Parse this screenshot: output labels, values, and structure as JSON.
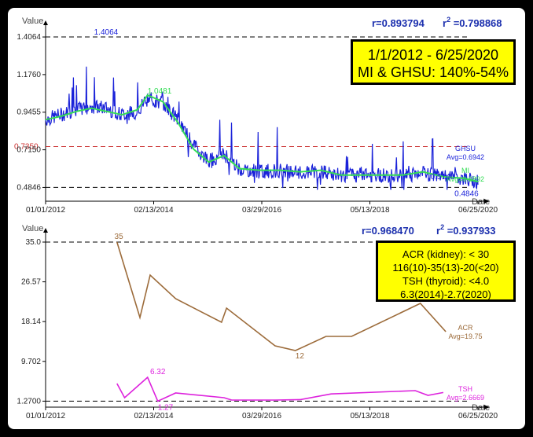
{
  "chart_data": [
    {
      "type": "line",
      "ylabel": "Value",
      "xlabel": "Date",
      "ylim": [
        0.4,
        1.45
      ],
      "xlim_year": [
        2012.0,
        2020.48
      ],
      "x_tick_labels": [
        "01/01/2012",
        "02/13/2014",
        "03/29/2016",
        "05/13/2018",
        "06/25/2020"
      ],
      "y_tick_labels": [
        "1.4064",
        "1.1760",
        "0.9455",
        "0.7150",
        "0.4846"
      ],
      "y_ticks": [
        1.4064,
        1.176,
        0.9455,
        0.715,
        0.4846
      ],
      "reference_lines": [
        {
          "value": 1.4064,
          "color": "#000000",
          "style": "dashed"
        },
        {
          "value": 0.4846,
          "color": "#000000",
          "style": "dashed"
        },
        {
          "value": 0.735,
          "color": "#cc3333",
          "style": "dashed",
          "label": "0.7350"
        }
      ],
      "stats": {
        "r": "r=0.893794",
        "r2_prefix": "r",
        "r2_exp": "2",
        "r2_value": " =0.798868"
      },
      "annotations": {
        "max_label": "1.4064",
        "min_label": "0.4846",
        "peak_label": "1.0481",
        "end_label": "0.5146"
      },
      "series": [
        {
          "name": "GHSU",
          "avg_label": "Avg=0.6942",
          "color": "#1a22d9",
          "x": [
            2012.0,
            2012.3,
            2012.6,
            2012.9,
            2013.2,
            2013.5,
            2013.8,
            2014.0,
            2014.3,
            2014.6,
            2014.9,
            2015.2,
            2015.5,
            2015.8,
            2016.2,
            2016.6,
            2017.0,
            2017.4,
            2017.8,
            2018.2,
            2018.6,
            2019.0,
            2019.4,
            2019.8,
            2020.2,
            2020.48
          ],
          "values": [
            0.9,
            0.93,
            0.96,
            0.98,
            0.97,
            0.93,
            0.95,
            1.03,
            1.0,
            0.9,
            0.74,
            0.65,
            0.69,
            0.6,
            0.58,
            0.59,
            0.57,
            0.58,
            0.56,
            0.56,
            0.56,
            0.55,
            0.57,
            0.55,
            0.54,
            0.52
          ]
        },
        {
          "name": "MI",
          "avg_label": "Avg=0.6892",
          "color": "#33dd55",
          "x": [
            2012.0,
            2012.3,
            2012.6,
            2012.9,
            2013.2,
            2013.5,
            2013.8,
            2014.0,
            2014.3,
            2014.6,
            2014.9,
            2015.2,
            2015.5,
            2015.8,
            2016.2,
            2016.6,
            2017.0,
            2017.4,
            2017.8,
            2018.2,
            2018.6,
            2019.0,
            2019.4,
            2019.8,
            2020.2,
            2020.48
          ],
          "values": [
            0.9,
            0.92,
            0.95,
            0.97,
            0.95,
            0.93,
            0.96,
            1.05,
            1.01,
            0.88,
            0.72,
            0.64,
            0.68,
            0.6,
            0.59,
            0.59,
            0.58,
            0.59,
            0.56,
            0.56,
            0.56,
            0.56,
            0.58,
            0.55,
            0.54,
            0.52
          ]
        }
      ]
    },
    {
      "type": "line",
      "ylabel": "Value",
      "xlabel": "Date",
      "ylim": [
        0.0,
        36.0
      ],
      "xlim_year": [
        2012.0,
        2020.48
      ],
      "x_tick_labels": [
        "01/01/2012",
        "02/13/2014",
        "03/29/2016",
        "05/13/2018",
        "06/25/2020"
      ],
      "y_tick_labels": [
        "35.0",
        "26.57",
        "18.14",
        "9.702",
        "1.2700"
      ],
      "y_ticks": [
        35.0,
        26.57,
        18.14,
        9.702,
        1.27
      ],
      "reference_lines": [
        {
          "value": 35.0,
          "color": "#000000",
          "style": "dashed"
        },
        {
          "value": 1.27,
          "color": "#000000",
          "style": "dashed"
        }
      ],
      "stats": {
        "r": "r=0.968470",
        "r2_prefix": "r",
        "r2_exp": "2",
        "r2_value": " =0.937933"
      },
      "annotations": {
        "acr_max": "35",
        "acr_min": "12",
        "tsh_max": "6.32",
        "tsh_min": "1.27"
      },
      "series": [
        {
          "name": "ACR",
          "avg_label": "Avg=19.75",
          "color": "#9c6b3a",
          "x": [
            2013.4,
            2013.85,
            2014.05,
            2014.55,
            2015.45,
            2015.55,
            2016.5,
            2016.9,
            2017.5,
            2018.0,
            2019.35,
            2019.85
          ],
          "values": [
            35.0,
            19.0,
            28.0,
            23.0,
            18.0,
            21.0,
            13.0,
            12.0,
            15.0,
            15.0,
            22.0,
            16.0
          ]
        },
        {
          "name": "TSH",
          "avg_label": "Avg=2.6669",
          "color": "#dd22dd",
          "x": [
            2013.4,
            2013.55,
            2014.0,
            2014.2,
            2014.55,
            2015.5,
            2015.65,
            2016.5,
            2017.0,
            2017.6,
            2019.25,
            2019.5,
            2019.8
          ],
          "values": [
            5.0,
            2.0,
            6.32,
            1.27,
            3.0,
            2.0,
            1.5,
            1.5,
            1.6,
            2.8,
            3.5,
            2.5,
            3.1
          ]
        }
      ]
    }
  ],
  "notes": {
    "top_line1": "1/1/2012 - 6/25/2020",
    "top_line2": "MI & GHSU: 140%-54%",
    "bottom_line1": "ACR (kidney): < 30",
    "bottom_line2": "116(10)-35(13)-20(<20)",
    "bottom_line3": "TSH (thyroid): <4.0",
    "bottom_line4": "6.3(2014)-2.7(2020)"
  }
}
